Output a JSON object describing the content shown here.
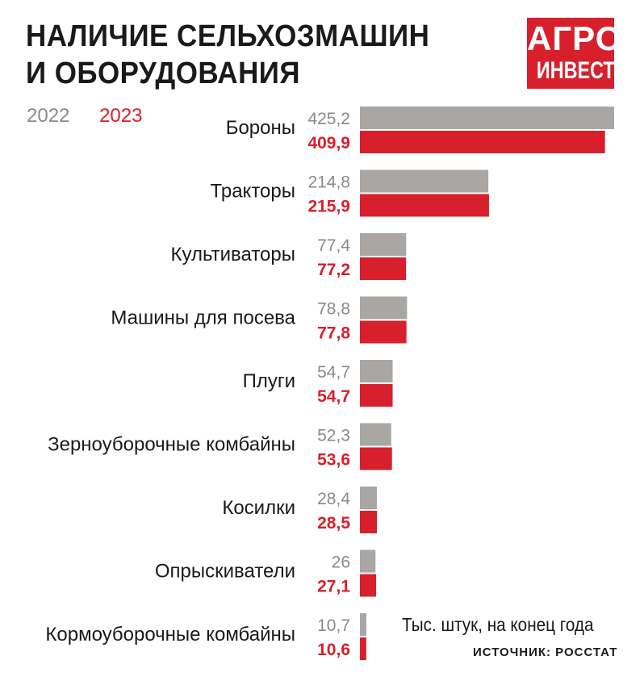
{
  "header": {
    "title_line1": "НАЛИЧИЕ СЕЛЬХОЗМАШИН",
    "title_line2": "И ОБОРУДОВАНИЯ"
  },
  "logo": {
    "line1": "АГРО",
    "line2": "ИНВЕСТОР"
  },
  "legend": {
    "y2022": "2022",
    "y2023": "2023"
  },
  "footer": {
    "units": "Тыс. штук, на конец года",
    "source": "ИСТОЧНИК: РОССТАТ"
  },
  "colors": {
    "y2022": "#aaa6a3",
    "y2023": "#d7202c",
    "label_2022": "#8a8a8a",
    "label_2023": "#d7202c"
  },
  "chart_data": {
    "type": "bar",
    "orientation": "horizontal",
    "categories": [
      "Бороны",
      "Тракторы",
      "Культиваторы",
      "Машины для посева",
      "Плуги",
      "Зерноуборочные комбайны",
      "Косилки",
      "Опрыскиватели",
      "Кормоуборочные комбайны"
    ],
    "series": [
      {
        "name": "2022",
        "values": [
          425.2,
          214.8,
          77.4,
          78.8,
          54.7,
          52.3,
          28.4,
          26,
          10.7
        ],
        "labels": [
          "425,2",
          "214,8",
          "77,4",
          "78,8",
          "54,7",
          "52,3",
          "28,4",
          "26",
          "10,7"
        ]
      },
      {
        "name": "2023",
        "values": [
          409.9,
          215.9,
          77.2,
          77.8,
          54.7,
          53.6,
          28.5,
          27.1,
          10.6
        ],
        "labels": [
          "409,9",
          "215,9",
          "77,2",
          "77,8",
          "54,7",
          "53,6",
          "28,5",
          "27,1",
          "10,6"
        ]
      }
    ],
    "xlim": [
      0,
      425.2
    ],
    "grid": false,
    "legend": "top-left"
  }
}
